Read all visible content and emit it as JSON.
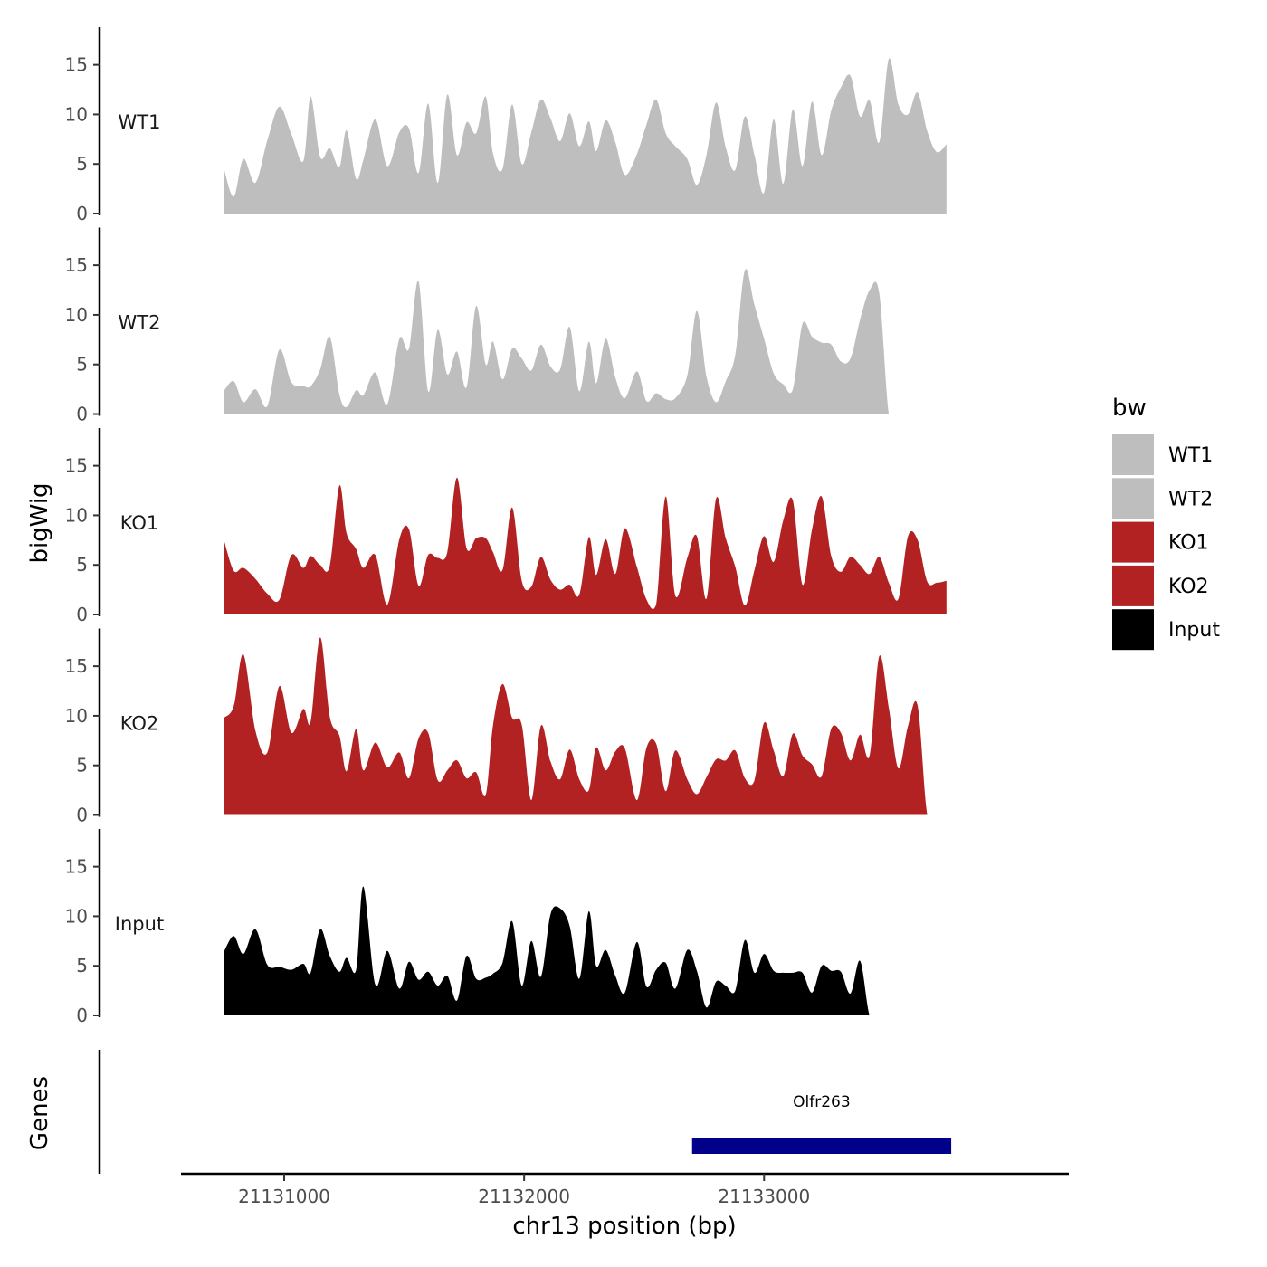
{
  "chart_data": {
    "type": "area",
    "ylabel": "bigWig",
    "xlabel": "chr13 position (bp)",
    "genes_label": "Genes",
    "xlim": [
      21130570,
      21134270
    ],
    "ylim": [
      0,
      18.8
    ],
    "x_ticks": [
      {
        "value": 21131000,
        "label": "21131000"
      },
      {
        "value": 21132000,
        "label": "21132000"
      },
      {
        "value": 21133000,
        "label": "21133000"
      }
    ],
    "y_ticks": [
      {
        "value": 0,
        "label": "0"
      },
      {
        "value": 5,
        "label": "5"
      },
      {
        "value": 10,
        "label": "10"
      },
      {
        "value": 15,
        "label": "15"
      }
    ],
    "legend": {
      "title": "bw",
      "items": [
        {
          "label": "WT1",
          "color": "#bebebe"
        },
        {
          "label": "WT2",
          "color": "#bebebe"
        },
        {
          "label": "KO1",
          "color": "#b22222"
        },
        {
          "label": "KO2",
          "color": "#b22222"
        },
        {
          "label": "Input",
          "color": "#000000"
        }
      ]
    },
    "series": [
      {
        "name": "WT1",
        "color": "#bebebe",
        "x": [
          21130750,
          21130790,
          21130830,
          21130880,
          21130930,
          21130980,
          21131030,
          21131080,
          21131110,
          21131150,
          21131190,
          21131230,
          21131260,
          21131300,
          21131330,
          21131380,
          21131430,
          21131480,
          21131520,
          21131560,
          21131600,
          21131640,
          21131680,
          21131720,
          21131760,
          21131800,
          21131840,
          21131870,
          21131910,
          21131950,
          21131990,
          21132030,
          21132070,
          21132110,
          21132150,
          21132190,
          21132230,
          21132270,
          21132300,
          21132340,
          21132380,
          21132420,
          21132470,
          21132510,
          21132550,
          21132590,
          21132630,
          21132680,
          21132720,
          21132760,
          21132800,
          21132840,
          21132880,
          21132920,
          21132960,
          21133000,
          21133040,
          21133080,
          21133120,
          21133160,
          21133200,
          21133240,
          21133280,
          21133320,
          21133360,
          21133400,
          21133440,
          21133480,
          21133520,
          21133560,
          21133600,
          21133640,
          21133680,
          21133720,
          21133760
        ],
        "y": [
          4.4,
          1.7,
          5.5,
          3.1,
          7.4,
          10.8,
          8.0,
          5.3,
          11.8,
          5.7,
          6.6,
          4.7,
          8.4,
          3.5,
          5.4,
          9.5,
          4.8,
          8.2,
          8.6,
          4.1,
          11.1,
          3.1,
          12.0,
          5.9,
          9.2,
          8.1,
          11.8,
          6.1,
          4.5,
          11.0,
          5.0,
          8.2,
          11.5,
          9.6,
          7.3,
          10.1,
          6.8,
          9.3,
          6.3,
          9.4,
          7.2,
          3.9,
          6.0,
          9.0,
          11.5,
          8.1,
          6.8,
          5.5,
          2.9,
          5.9,
          11.2,
          6.7,
          4.4,
          9.8,
          5.9,
          2.1,
          9.5,
          3.0,
          10.5,
          4.8,
          11.3,
          5.9,
          10.4,
          12.7,
          13.9,
          9.8,
          11.4,
          7.2,
          15.6,
          11.0,
          10.0,
          12.2,
          8.3,
          6.2,
          7.0
        ]
      },
      {
        "name": "WT2",
        "color": "#bebebe",
        "x": [
          21130750,
          21130790,
          21130830,
          21130880,
          21130930,
          21130980,
          21131030,
          21131080,
          21131110,
          21131150,
          21131190,
          21131230,
          21131260,
          21131300,
          21131330,
          21131380,
          21131430,
          21131480,
          21131520,
          21131560,
          21131600,
          21131640,
          21131680,
          21131720,
          21131760,
          21131800,
          21131840,
          21131870,
          21131910,
          21131950,
          21131990,
          21132030,
          21132070,
          21132110,
          21132150,
          21132190,
          21132230,
          21132270,
          21132300,
          21132340,
          21132380,
          21132420,
          21132470,
          21132510,
          21132550,
          21132590,
          21132630,
          21132680,
          21132720,
          21132760,
          21132800,
          21132840,
          21132880,
          21132920,
          21132960,
          21133000,
          21133040,
          21133080,
          21133120,
          21133160,
          21133200,
          21133240,
          21133280,
          21133320,
          21133360,
          21133400,
          21133440,
          21133480,
          21133520,
          21133560,
          21133600,
          21133640,
          21133680,
          21133720,
          21133760
        ],
        "y": [
          2.4,
          3.3,
          1.2,
          2.5,
          0.8,
          6.5,
          3.2,
          2.8,
          2.8,
          4.5,
          7.8,
          2.0,
          0.7,
          2.4,
          1.9,
          4.2,
          1.0,
          7.6,
          6.6,
          13.4,
          2.3,
          8.5,
          4.0,
          6.3,
          2.7,
          10.9,
          5.0,
          7.3,
          3.5,
          6.6,
          5.6,
          4.4,
          7.0,
          4.8,
          4.5,
          8.8,
          2.3,
          7.3,
          3.1,
          7.6,
          3.7,
          1.6,
          4.3,
          1.3,
          2.1,
          1.5,
          1.6,
          3.9,
          10.4,
          3.8,
          1.2,
          3.3,
          6.0,
          14.5,
          11.0,
          7.6,
          4.1,
          3.0,
          2.5,
          9.1,
          7.8,
          7.2,
          7.0,
          5.3,
          5.6,
          9.5,
          12.5,
          12.2,
          0.0,
          0.0,
          0.0,
          0.0,
          0.0,
          0.0,
          0.0
        ]
      },
      {
        "name": "KO1",
        "color": "#b22222",
        "x": [
          21130750,
          21130790,
          21130830,
          21130880,
          21130930,
          21130980,
          21131030,
          21131080,
          21131110,
          21131150,
          21131190,
          21131230,
          21131260,
          21131300,
          21131330,
          21131380,
          21131430,
          21131480,
          21131520,
          21131560,
          21131600,
          21131640,
          21131680,
          21131720,
          21131760,
          21131800,
          21131840,
          21131870,
          21131910,
          21131950,
          21131990,
          21132030,
          21132070,
          21132110,
          21132150,
          21132190,
          21132230,
          21132270,
          21132300,
          21132340,
          21132380,
          21132420,
          21132470,
          21132510,
          21132550,
          21132590,
          21132630,
          21132680,
          21132720,
          21132760,
          21132800,
          21132840,
          21132880,
          21132920,
          21132960,
          21133000,
          21133040,
          21133080,
          21133120,
          21133160,
          21133200,
          21133240,
          21133280,
          21133320,
          21133360,
          21133400,
          21133440,
          21133480,
          21133520,
          21133560,
          21133600,
          21133640,
          21133680,
          21133720,
          21133760
        ],
        "y": [
          7.4,
          4.4,
          4.7,
          3.6,
          2.1,
          1.5,
          6.0,
          4.7,
          5.9,
          5.0,
          4.9,
          13.0,
          8.2,
          6.6,
          4.7,
          6.0,
          1.0,
          7.6,
          8.6,
          2.9,
          6.0,
          5.7,
          6.3,
          13.8,
          6.7,
          7.7,
          7.7,
          6.3,
          4.5,
          10.8,
          3.4,
          2.8,
          5.8,
          3.5,
          2.5,
          3.0,
          2.0,
          7.8,
          4.0,
          7.6,
          4.1,
          8.7,
          4.8,
          1.5,
          1.0,
          11.9,
          1.9,
          5.7,
          7.9,
          1.6,
          11.7,
          7.7,
          4.8,
          0.9,
          4.5,
          7.9,
          5.3,
          9.5,
          11.5,
          3.0,
          8.6,
          11.9,
          5.9,
          4.3,
          5.8,
          5.0,
          4.1,
          5.8,
          3.2,
          1.6,
          7.9,
          7.5,
          3.3,
          3.2,
          3.4
        ]
      },
      {
        "name": "KO2",
        "color": "#b22222",
        "x": [
          21130750,
          21130790,
          21130830,
          21130880,
          21130930,
          21130980,
          21131030,
          21131080,
          21131110,
          21131150,
          21131190,
          21131230,
          21131260,
          21131300,
          21131330,
          21131380,
          21131430,
          21131480,
          21131520,
          21131560,
          21131600,
          21131640,
          21131680,
          21131720,
          21131760,
          21131800,
          21131840,
          21131870,
          21131910,
          21131950,
          21131990,
          21132030,
          21132070,
          21132110,
          21132150,
          21132190,
          21132230,
          21132270,
          21132300,
          21132340,
          21132380,
          21132420,
          21132470,
          21132510,
          21132550,
          21132590,
          21132630,
          21132680,
          21132720,
          21132760,
          21132800,
          21132840,
          21132880,
          21132920,
          21132960,
          21133000,
          21133040,
          21133080,
          21133120,
          21133160,
          21133200,
          21133240,
          21133280,
          21133320,
          21133360,
          21133400,
          21133440,
          21133480,
          21133520,
          21133560,
          21133600,
          21133640,
          21133680,
          21133720,
          21133760
        ],
        "y": [
          9.8,
          11.0,
          16.2,
          8.5,
          6.3,
          13.0,
          8.3,
          10.7,
          9.4,
          17.9,
          9.9,
          8.0,
          4.4,
          8.7,
          4.5,
          7.3,
          4.8,
          6.3,
          3.7,
          7.7,
          8.3,
          3.5,
          4.5,
          5.5,
          3.7,
          4.3,
          2.0,
          9.0,
          13.2,
          9.8,
          9.1,
          1.5,
          9.0,
          5.4,
          3.6,
          6.6,
          3.6,
          2.5,
          6.8,
          4.5,
          6.4,
          6.7,
          1.5,
          6.8,
          7.2,
          2.4,
          6.5,
          3.6,
          2.1,
          3.8,
          5.6,
          5.5,
          6.5,
          3.7,
          3.5,
          9.3,
          6.5,
          3.9,
          8.2,
          6.0,
          5.1,
          3.9,
          8.7,
          8.3,
          5.5,
          8.1,
          6.0,
          16.0,
          10.8,
          4.7,
          9.0,
          11.0,
          0.0,
          0.0,
          0.0
        ]
      },
      {
        "name": "Input",
        "color": "#000000",
        "x": [
          21130750,
          21130790,
          21130830,
          21130880,
          21130930,
          21130980,
          21131030,
          21131080,
          21131110,
          21131150,
          21131190,
          21131230,
          21131260,
          21131300,
          21131330,
          21131380,
          21131430,
          21131480,
          21131520,
          21131560,
          21131600,
          21131640,
          21131680,
          21131720,
          21131760,
          21131800,
          21131840,
          21131870,
          21131910,
          21131950,
          21131990,
          21132030,
          21132070,
          21132110,
          21132150,
          21132190,
          21132230,
          21132270,
          21132300,
          21132340,
          21132380,
          21132420,
          21132470,
          21132510,
          21132550,
          21132590,
          21132630,
          21132680,
          21132720,
          21132760,
          21132800,
          21132840,
          21132880,
          21132920,
          21132960,
          21133000,
          21133040,
          21133080,
          21133120,
          21133160,
          21133200,
          21133240,
          21133280,
          21133320,
          21133360,
          21133400,
          21133440,
          21133480,
          21133520,
          21133560,
          21133600,
          21133640,
          21133680,
          21133720,
          21133760
        ],
        "y": [
          6.5,
          8.0,
          6.2,
          8.7,
          5.1,
          4.9,
          4.6,
          5.2,
          4.3,
          8.7,
          6.0,
          4.4,
          5.8,
          4.6,
          13.0,
          3.1,
          6.5,
          2.7,
          5.4,
          3.6,
          4.4,
          3.0,
          4.0,
          1.5,
          6.0,
          3.7,
          3.8,
          4.2,
          5.3,
          9.5,
          3.0,
          7.5,
          3.9,
          10.2,
          10.8,
          9.0,
          3.7,
          10.5,
          5.0,
          6.6,
          4.0,
          2.3,
          7.4,
          2.9,
          4.6,
          5.3,
          2.7,
          6.6,
          4.5,
          0.8,
          3.4,
          3.0,
          2.5,
          7.6,
          4.3,
          6.2,
          4.5,
          4.3,
          4.3,
          4.3,
          2.3,
          5.0,
          4.5,
          4.4,
          2.2,
          5.5,
          0.0,
          0.0,
          0.0,
          0.0,
          0.0,
          0.0,
          0.0,
          0.0,
          0.0
        ]
      }
    ],
    "genes": [
      {
        "name": "Olfr263",
        "start": 21132700,
        "end": 21133780,
        "color": "#00008b"
      }
    ]
  }
}
